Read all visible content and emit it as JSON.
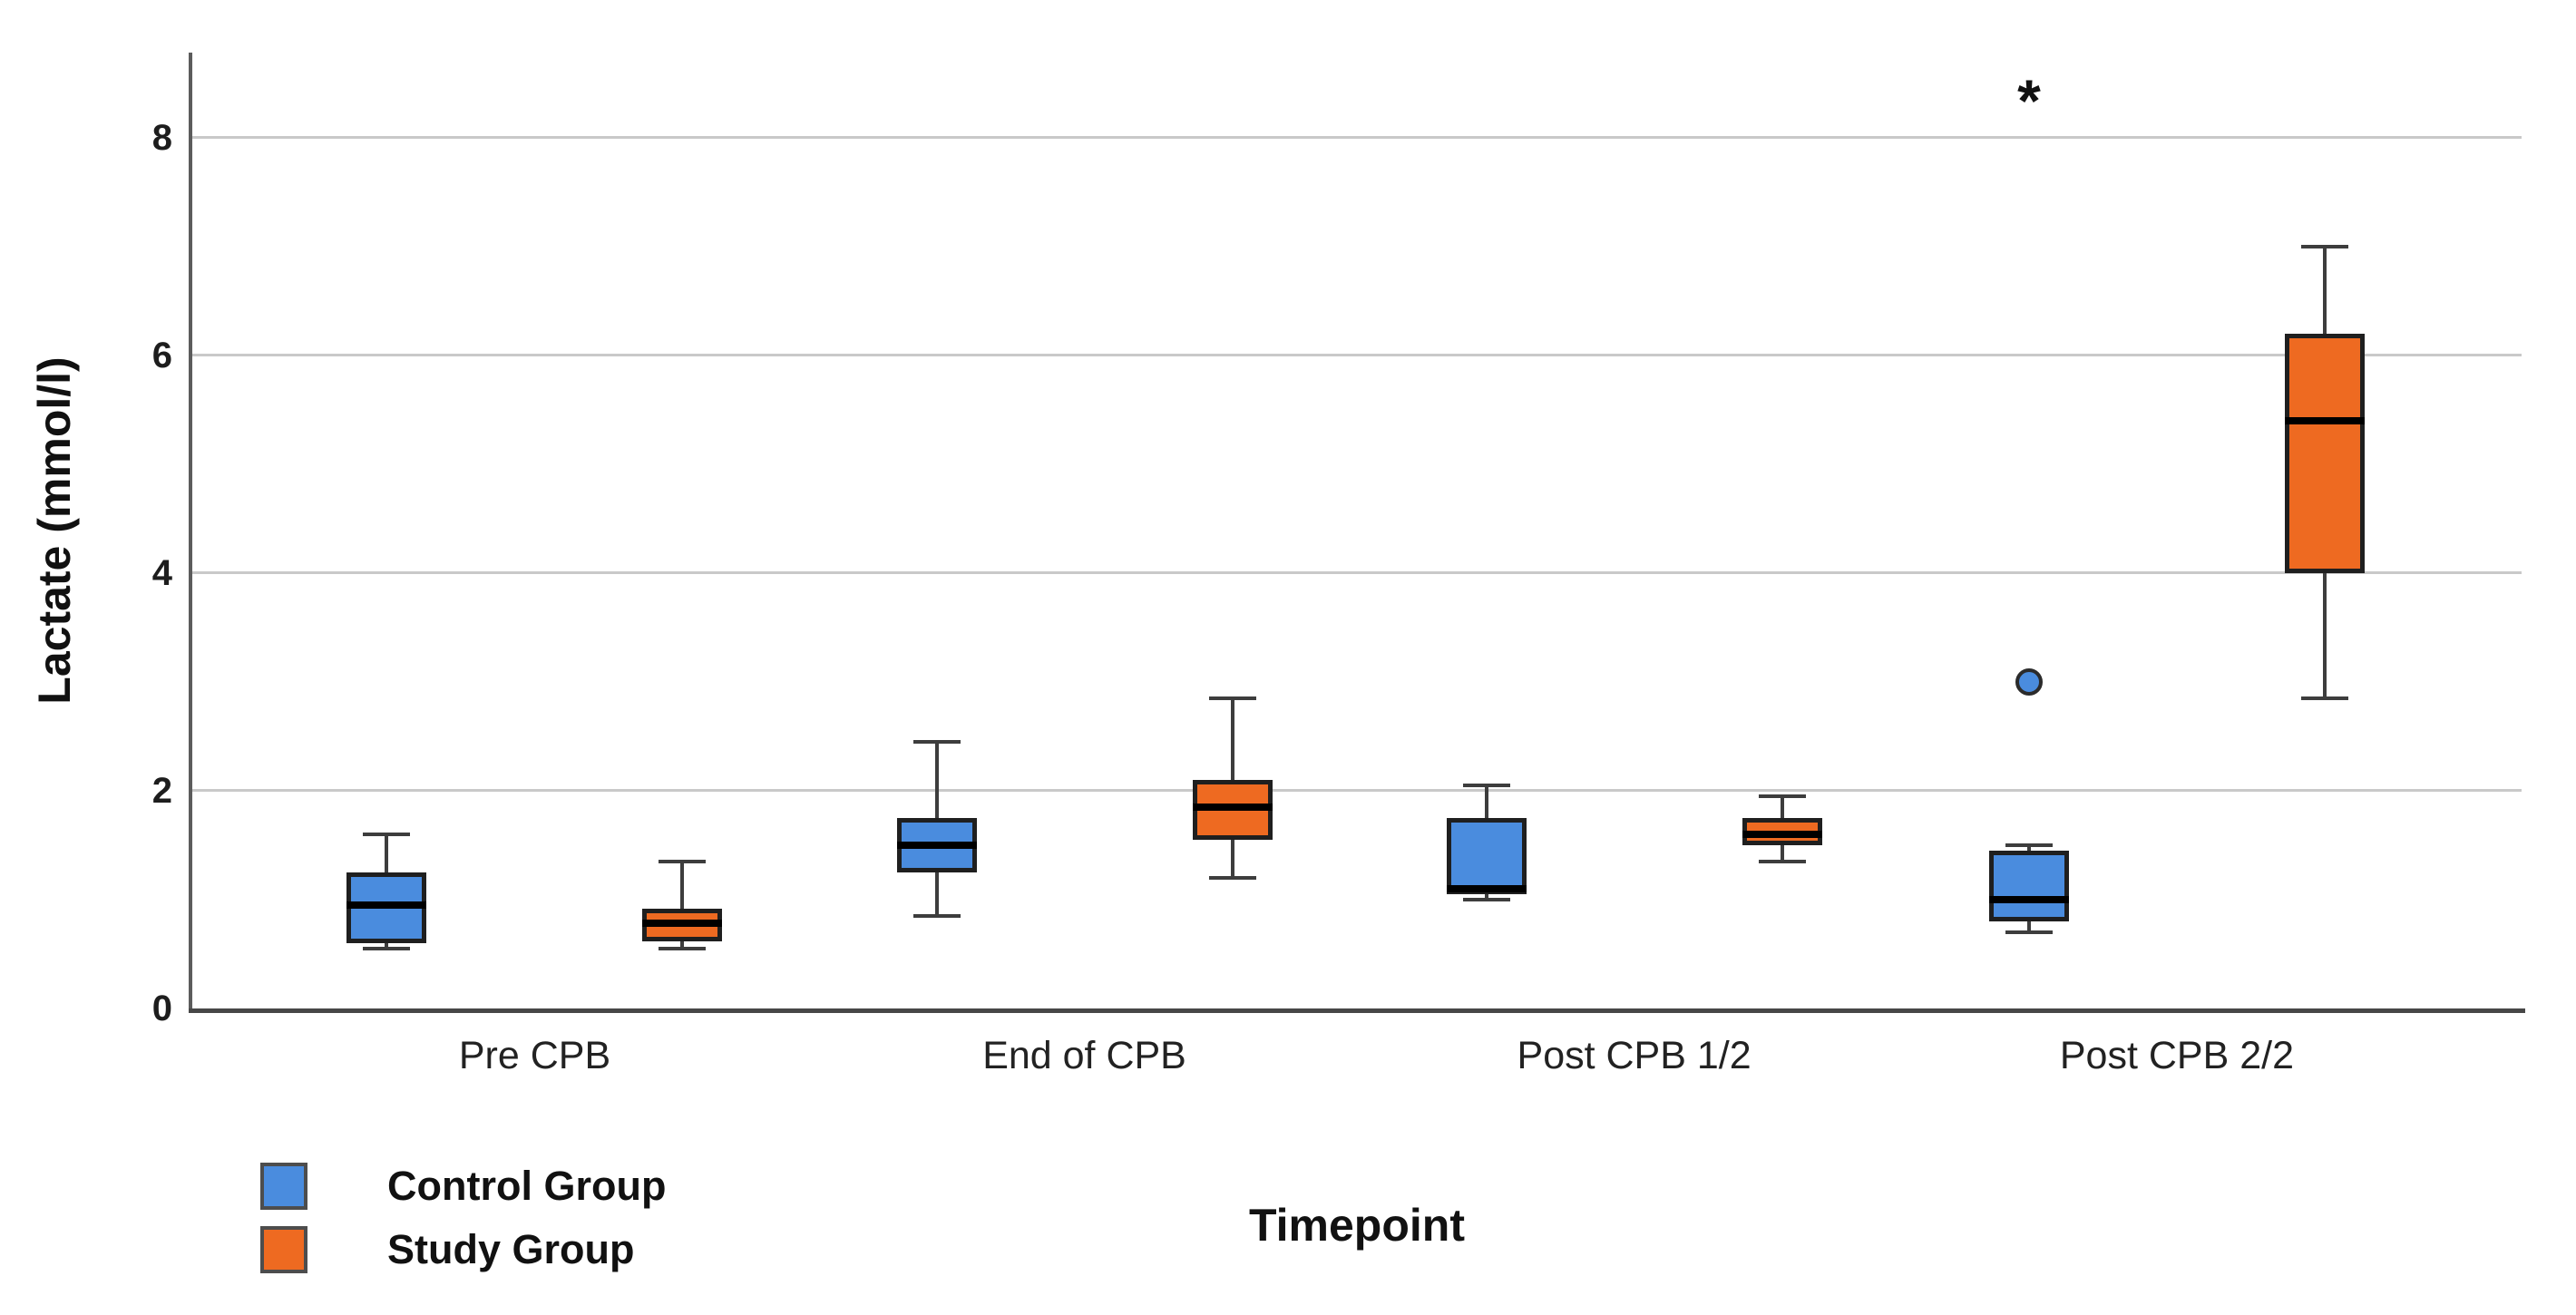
{
  "chart_data": {
    "type": "boxplot",
    "title": "",
    "xlabel": "Timepoint",
    "ylabel": "Lactate (mmol/l)",
    "ylim": [
      0,
      8.78
    ],
    "yticks": [
      0,
      2,
      4,
      6,
      8
    ],
    "grid": "horizontal gridlines at 2, 4, 6, 8",
    "legend_position": "bottom-left",
    "categories": [
      "Pre CPB",
      "End of CPB",
      "Post CPB 1/2",
      "Post CPB 2/2"
    ],
    "series": [
      {
        "name": "Control Group",
        "color": "#4A8CDE",
        "boxes": [
          {
            "category": "Pre CPB",
            "min": 0.55,
            "q1": 0.6,
            "median": 0.95,
            "q3": 1.25,
            "max": 1.6
          },
          {
            "category": "End of CPB",
            "min": 0.85,
            "q1": 1.25,
            "median": 1.5,
            "q3": 1.75,
            "max": 2.45
          },
          {
            "category": "Post CPB 1/2",
            "min": 1.0,
            "q1": 1.05,
            "median": 1.1,
            "q3": 1.75,
            "max": 2.05
          },
          {
            "category": "Post CPB 2/2",
            "min": 0.7,
            "q1": 0.8,
            "median": 1.0,
            "q3": 1.45,
            "max": 1.5
          }
        ],
        "outliers": [
          {
            "category": "Post CPB 2/2",
            "value": 3.0,
            "marker": "circle"
          },
          {
            "category": "Post CPB 2/2",
            "value": 8.45,
            "marker": "asterisk",
            "label": "*"
          }
        ]
      },
      {
        "name": "Study Group",
        "color": "#EE6A21",
        "boxes": [
          {
            "category": "Pre CPB",
            "min": 0.55,
            "q1": 0.62,
            "median": 0.78,
            "q3": 0.92,
            "max": 1.35
          },
          {
            "category": "End of CPB",
            "min": 1.2,
            "q1": 1.55,
            "median": 1.85,
            "q3": 2.1,
            "max": 2.85
          },
          {
            "category": "Post CPB 1/2",
            "min": 1.35,
            "q1": 1.5,
            "median": 1.6,
            "q3": 1.75,
            "max": 1.95
          },
          {
            "category": "Post CPB 2/2",
            "min": 2.85,
            "q1": 4.0,
            "median": 5.4,
            "q3": 6.2,
            "max": 7.0
          }
        ],
        "outliers": []
      }
    ]
  },
  "legend": {
    "items": [
      {
        "label": "Control Group",
        "color": "#4A8CDE"
      },
      {
        "label": "Study Group",
        "color": "#EE6A21"
      }
    ]
  }
}
